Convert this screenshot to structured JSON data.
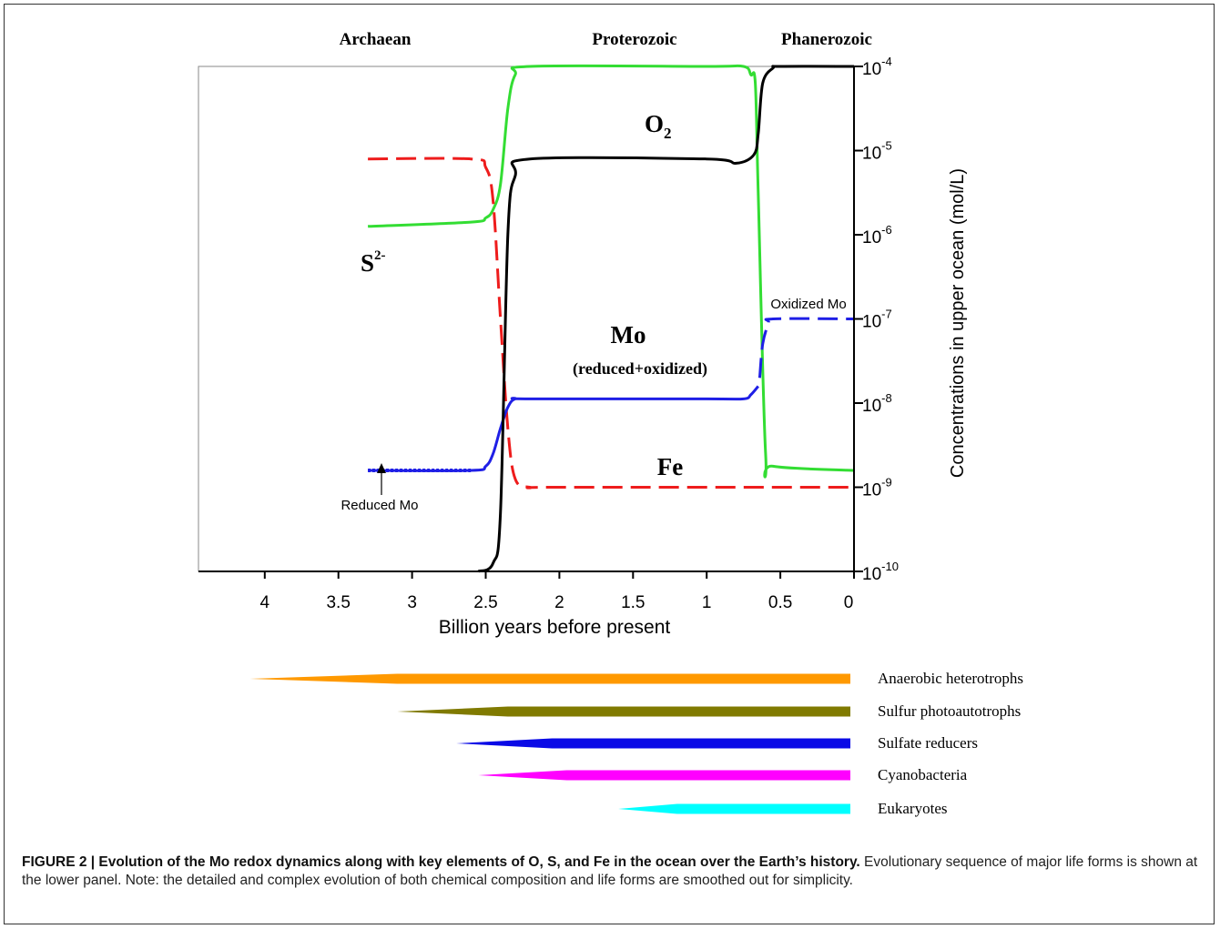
{
  "chart_data": [
    {
      "type": "line",
      "eras": [
        "Archaean",
        "Proterozoic",
        "Phanerozoic"
      ],
      "xlabel": "Billion years before present",
      "ylabel": "Concentrations in upper ocean (mol/L)",
      "x_ticks": [
        "4",
        "3.5",
        "3",
        "2.5",
        "2",
        "1.5",
        "1",
        "0.5",
        "0"
      ],
      "x_tick_values": [
        4,
        3.5,
        3,
        2.5,
        2,
        1.5,
        1,
        0.5,
        0
      ],
      "xlim": [
        4.45,
        0
      ],
      "y_scale": "log",
      "ylim": [
        1e-10,
        0.0001
      ],
      "y_ticks": [
        {
          "base": "10",
          "exp": "-4",
          "value": -4
        },
        {
          "base": "10",
          "exp": "-5",
          "value": -5
        },
        {
          "base": "10",
          "exp": "-6",
          "value": -6
        },
        {
          "base": "10",
          "exp": "-7",
          "value": -7
        },
        {
          "base": "10",
          "exp": "-8",
          "value": -8
        },
        {
          "base": "10",
          "exp": "-9",
          "value": -9
        },
        {
          "base": "10",
          "exp": "-10",
          "value": -10
        }
      ],
      "y_axis_side": "right",
      "series": [
        {
          "name": "O2",
          "label_main": "O",
          "label_sub": "2",
          "color": "#000000",
          "style": "solid",
          "x": [
            2.55,
            2.45,
            2.4,
            2.35,
            2.3,
            2.2,
            1.0,
            0.8,
            0.68,
            0.65,
            0.62,
            0.55,
            0.5,
            0.0
          ],
          "y": [
            -10.0,
            -9.9,
            -9.3,
            -6.0,
            -5.3,
            -5.1,
            -5.1,
            -5.15,
            -5.05,
            -4.8,
            -4.2,
            -4.02,
            -4.0,
            -4.0
          ]
        },
        {
          "name": "S2-",
          "label_main": "S",
          "label_sup": "2-",
          "color": "#33dd33",
          "style": "solid",
          "x": [
            3.3,
            2.6,
            2.5,
            2.45,
            2.4,
            2.35,
            2.3,
            2.2,
            1.0,
            0.75,
            0.7,
            0.67,
            0.65,
            0.6,
            0.55,
            0.0
          ],
          "y": [
            -5.9,
            -5.85,
            -5.8,
            -5.7,
            -5.4,
            -4.5,
            -4.1,
            -4.0,
            -4.0,
            -4.0,
            -4.1,
            -4.2,
            -5.5,
            -8.6,
            -8.75,
            -8.8
          ]
        },
        {
          "name": "Fe",
          "color": "#ee1c1c",
          "style": "dashed",
          "x": [
            3.3,
            2.6,
            2.5,
            2.45,
            2.4,
            2.35,
            2.3,
            2.2,
            2.0,
            0.0
          ],
          "y": [
            -5.1,
            -5.1,
            -5.2,
            -5.6,
            -7.0,
            -8.3,
            -8.9,
            -9.0,
            -9.0,
            -9.0
          ]
        },
        {
          "name": "Mo (reduced+oxidized)",
          "label_main": "Mo",
          "label_sub_text": "(reduced+oxidized)",
          "color": "#1f1fe6",
          "style": "solid",
          "x": [
            3.3,
            2.6,
            2.5,
            2.45,
            2.4,
            2.35,
            2.3,
            2.2,
            1.0,
            0.75,
            0.7,
            0.65
          ],
          "y": [
            -8.8,
            -8.8,
            -8.75,
            -8.6,
            -8.3,
            -8.05,
            -7.95,
            -7.95,
            -7.95,
            -7.95,
            -7.9,
            -7.8
          ]
        },
        {
          "name": "Reduced Mo",
          "color": "#1f1fe6",
          "style": "dotted",
          "x": [
            3.3,
            2.6
          ],
          "y": [
            -8.8,
            -8.8
          ]
        },
        {
          "name": "Oxidized Mo",
          "color": "#1f1fe6",
          "style": "dashed",
          "x": [
            0.64,
            0.62,
            0.58,
            0.55,
            0.0
          ],
          "y": [
            -7.7,
            -7.3,
            -7.05,
            -7.0,
            -7.0
          ]
        }
      ],
      "annotations": [
        "Reduced Mo",
        "Oxidized Mo"
      ]
    },
    {
      "type": "bar",
      "title": "",
      "categories": [
        "Anaerobic heterotrophs",
        "Sulfur photoautotrophs",
        "Sulfate reducers",
        "Cyanobacteria",
        "Eukaryotes"
      ],
      "colors": [
        "#ff9900",
        "#807a00",
        "#0a0ae6",
        "#ff00ff",
        "#00ffff"
      ],
      "start_ga": [
        4.1,
        3.1,
        2.7,
        2.55,
        1.6
      ],
      "full_width_from_ga": [
        3.1,
        2.35,
        2.05,
        1.95,
        1.2
      ],
      "end_ga": [
        0.0,
        0.0,
        0.0,
        0.0,
        0.0
      ]
    }
  ],
  "caption": {
    "title": "FIGURE 2 | Evolution of the Mo redox dynamics along with key elements of O, S, and Fe in the ocean over the Earth’s history.",
    "body": " Evolutionary sequence of major life forms is shown at the lower panel. Note: the detailed and complex evolution of both chemical composition and life forms are smoothed out for simplicity."
  }
}
